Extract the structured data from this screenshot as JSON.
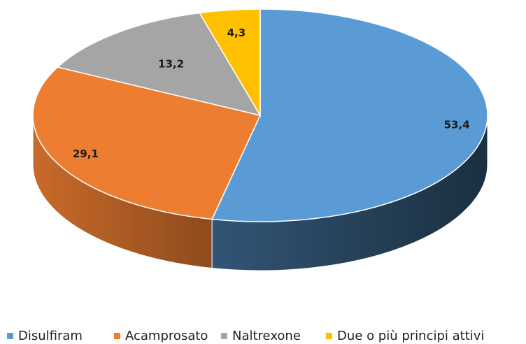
{
  "chart_data": {
    "type": "pie",
    "categories": [
      "Disulfiram",
      "Acamprosato",
      "Naltrexone",
      "Due o più principi attivi"
    ],
    "values": [
      53.4,
      29.1,
      13.2,
      4.3
    ],
    "value_labels": [
      "53,4",
      "29,1",
      "13,2",
      "4,3"
    ],
    "colors": [
      "#5b9bd5",
      "#ed7d31",
      "#a5a5a5",
      "#ffc000"
    ],
    "legend": "bottom"
  }
}
